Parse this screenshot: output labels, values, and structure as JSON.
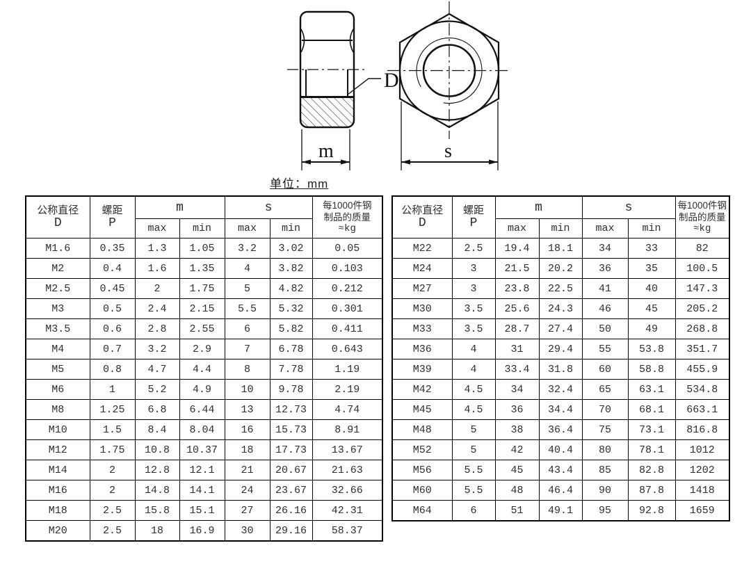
{
  "unit_label": "单位：mm",
  "drawing": {
    "bore_label": "D",
    "height_dim_label": "m",
    "width_dim_label": "s"
  },
  "header": {
    "diameter_line1": "公称直径",
    "diameter_line2": "D",
    "pitch_line1": "螺距",
    "pitch_line2": "P",
    "m_group": "m",
    "s_group": "s",
    "max": "max",
    "min": "min",
    "mass_line1": "每1000件钢",
    "mass_line2": "制品的质量",
    "mass_line3": "≈kg"
  },
  "tables": {
    "left": {
      "rows": [
        [
          "M1.6",
          "0.35",
          "1.3",
          "1.05",
          "3.2",
          "3.02",
          "0.05"
        ],
        [
          "M2",
          "0.4",
          "1.6",
          "1.35",
          "4",
          "3.82",
          "0.103"
        ],
        [
          "M2.5",
          "0.45",
          "2",
          "1.75",
          "5",
          "4.82",
          "0.212"
        ],
        [
          "M3",
          "0.5",
          "2.4",
          "2.15",
          "5.5",
          "5.32",
          "0.301"
        ],
        [
          "M3.5",
          "0.6",
          "2.8",
          "2.55",
          "6",
          "5.82",
          "0.411"
        ],
        [
          "M4",
          "0.7",
          "3.2",
          "2.9",
          "7",
          "6.78",
          "0.643"
        ],
        [
          "M5",
          "0.8",
          "4.7",
          "4.4",
          "8",
          "7.78",
          "1.19"
        ],
        [
          "M6",
          "1",
          "5.2",
          "4.9",
          "10",
          "9.78",
          "2.19"
        ],
        [
          "M8",
          "1.25",
          "6.8",
          "6.44",
          "13",
          "12.73",
          "4.74"
        ],
        [
          "M10",
          "1.5",
          "8.4",
          "8.04",
          "16",
          "15.73",
          "8.91"
        ],
        [
          "M12",
          "1.75",
          "10.8",
          "10.37",
          "18",
          "17.73",
          "13.67"
        ],
        [
          "M14",
          "2",
          "12.8",
          "12.1",
          "21",
          "20.67",
          "21.63"
        ],
        [
          "M16",
          "2",
          "14.8",
          "14.1",
          "24",
          "23.67",
          "32.66"
        ],
        [
          "M18",
          "2.5",
          "15.8",
          "15.1",
          "27",
          "26.16",
          "42.31"
        ],
        [
          "M20",
          "2.5",
          "18",
          "16.9",
          "30",
          "29.16",
          "58.37"
        ]
      ]
    },
    "right": {
      "rows": [
        [
          "M22",
          "2.5",
          "19.4",
          "18.1",
          "34",
          "33",
          "82"
        ],
        [
          "M24",
          "3",
          "21.5",
          "20.2",
          "36",
          "35",
          "100.5"
        ],
        [
          "M27",
          "3",
          "23.8",
          "22.5",
          "41",
          "40",
          "147.3"
        ],
        [
          "M30",
          "3.5",
          "25.6",
          "24.3",
          "46",
          "45",
          "205.2"
        ],
        [
          "M33",
          "3.5",
          "28.7",
          "27.4",
          "50",
          "49",
          "268.8"
        ],
        [
          "M36",
          "4",
          "31",
          "29.4",
          "55",
          "53.8",
          "351.7"
        ],
        [
          "M39",
          "4",
          "33.4",
          "31.8",
          "60",
          "58.8",
          "455.9"
        ],
        [
          "M42",
          "4.5",
          "34",
          "32.4",
          "65",
          "63.1",
          "534.8"
        ],
        [
          "M45",
          "4.5",
          "36",
          "34.4",
          "70",
          "68.1",
          "663.1"
        ],
        [
          "M48",
          "5",
          "38",
          "36.4",
          "75",
          "73.1",
          "816.8"
        ],
        [
          "M52",
          "5",
          "42",
          "40.4",
          "80",
          "78.1",
          "1012"
        ],
        [
          "M56",
          "5.5",
          "45",
          "43.4",
          "85",
          "82.8",
          "1202"
        ],
        [
          "M60",
          "5.5",
          "48",
          "46.4",
          "90",
          "87.8",
          "1418"
        ],
        [
          "M64",
          "6",
          "51",
          "49.1",
          "95",
          "92.8",
          "1659"
        ]
      ]
    }
  }
}
